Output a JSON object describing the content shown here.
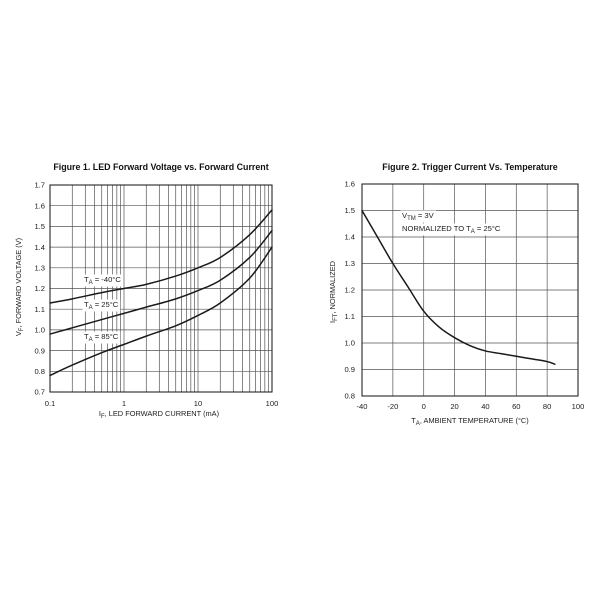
{
  "chart_data": [
    {
      "type": "line",
      "title": "Figure 1. LED Forward Voltage vs. Forward Current",
      "xlabel": {
        "pre": "I",
        "sub": "F",
        "post": ", LED FORWARD CURRENT (mA)"
      },
      "ylabel": {
        "pre": "V",
        "sub": "F",
        "post": ", FORWARD VOLTAGE (V)"
      },
      "xscale": "log",
      "xlim": [
        0.1,
        100
      ],
      "ylim": [
        0.7,
        1.7
      ],
      "xticks": [
        "0.1",
        "1",
        "10",
        "100"
      ],
      "yticks": [
        "0.7",
        "0.8",
        "0.9",
        "1.0",
        "1.1",
        "1.2",
        "1.3",
        "1.4",
        "1.5",
        "1.6",
        "1.7"
      ],
      "grid": true,
      "series": [
        {
          "label": {
            "pre": "T",
            "sub": "A",
            "post": " = -40°C"
          },
          "x": [
            0.1,
            0.2,
            0.5,
            1,
            2,
            5,
            10,
            20,
            50,
            100
          ],
          "y": [
            1.13,
            1.15,
            1.18,
            1.2,
            1.22,
            1.26,
            1.3,
            1.35,
            1.46,
            1.58
          ]
        },
        {
          "label": {
            "pre": "T",
            "sub": "A",
            "post": " = 25°C"
          },
          "x": [
            0.1,
            0.2,
            0.5,
            1,
            2,
            5,
            10,
            20,
            50,
            100
          ],
          "y": [
            0.98,
            1.01,
            1.05,
            1.08,
            1.11,
            1.15,
            1.19,
            1.24,
            1.35,
            1.48
          ]
        },
        {
          "label": {
            "pre": "T",
            "sub": "A",
            "post": " = 85°C"
          },
          "x": [
            0.1,
            0.2,
            0.5,
            1,
            2,
            5,
            10,
            20,
            50,
            100
          ],
          "y": [
            0.78,
            0.83,
            0.89,
            0.93,
            0.97,
            1.02,
            1.07,
            1.13,
            1.25,
            1.4
          ]
        }
      ]
    },
    {
      "type": "line",
      "title": "Figure 2. Trigger Current Vs. Temperature",
      "xlabel": {
        "pre": "T",
        "sub": "A",
        "post": ", AMBIENT TEMPERATURE (°C)"
      },
      "ylabel": {
        "pre": "I",
        "sub": "FT",
        "post": ", NORMALIZED"
      },
      "xscale": "linear",
      "xlim": [
        -40,
        100
      ],
      "ylim": [
        0.8,
        1.6
      ],
      "xticks": [
        "-40",
        "-20",
        "0",
        "20",
        "40",
        "60",
        "80",
        "100"
      ],
      "yticks": [
        "0.8",
        "0.9",
        "1.0",
        "1.1",
        "1.2",
        "1.3",
        "1.4",
        "1.5",
        "1.6"
      ],
      "grid": true,
      "annotations": [
        {
          "pre": "V",
          "sub": "TM",
          "post": " = 3V"
        },
        {
          "pre": "NORMALIZED TO T",
          "sub": "A",
          "post": " = 25°C"
        }
      ],
      "series": [
        {
          "x": [
            -40,
            -30,
            -20,
            -10,
            0,
            10,
            20,
            30,
            40,
            50,
            60,
            70,
            80,
            85
          ],
          "y": [
            1.5,
            1.4,
            1.3,
            1.21,
            1.12,
            1.06,
            1.02,
            0.99,
            0.97,
            0.96,
            0.95,
            0.94,
            0.93,
            0.92
          ]
        }
      ]
    }
  ]
}
